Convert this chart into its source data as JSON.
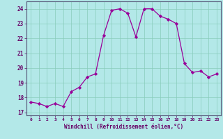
{
  "x": [
    0,
    1,
    2,
    3,
    4,
    5,
    6,
    7,
    8,
    9,
    10,
    11,
    12,
    13,
    14,
    15,
    16,
    17,
    18,
    19,
    20,
    21,
    22,
    23
  ],
  "y": [
    17.7,
    17.6,
    17.4,
    17.6,
    17.4,
    18.4,
    18.7,
    19.4,
    19.6,
    22.2,
    23.9,
    24.0,
    23.7,
    22.1,
    24.0,
    24.0,
    23.5,
    23.3,
    23.0,
    20.3,
    19.7,
    19.8,
    19.4,
    19.6
  ],
  "line_color": "#990099",
  "marker": "D",
  "markersize": 2.2,
  "bg_color": "#b3e8e8",
  "grid_color": "#88ccbb",
  "xlabel": "Windchill (Refroidissement éolien,°C)",
  "ylabel": "",
  "ylim": [
    16.8,
    24.5
  ],
  "yticks": [
    17,
    18,
    19,
    20,
    21,
    22,
    23,
    24
  ],
  "xlim": [
    -0.5,
    23.5
  ],
  "xticks": [
    0,
    1,
    2,
    3,
    4,
    5,
    6,
    7,
    8,
    9,
    10,
    11,
    12,
    13,
    14,
    15,
    16,
    17,
    18,
    19,
    20,
    21,
    22,
    23
  ],
  "tick_color": "#660066",
  "label_color": "#660066",
  "axis_color": "#555577"
}
